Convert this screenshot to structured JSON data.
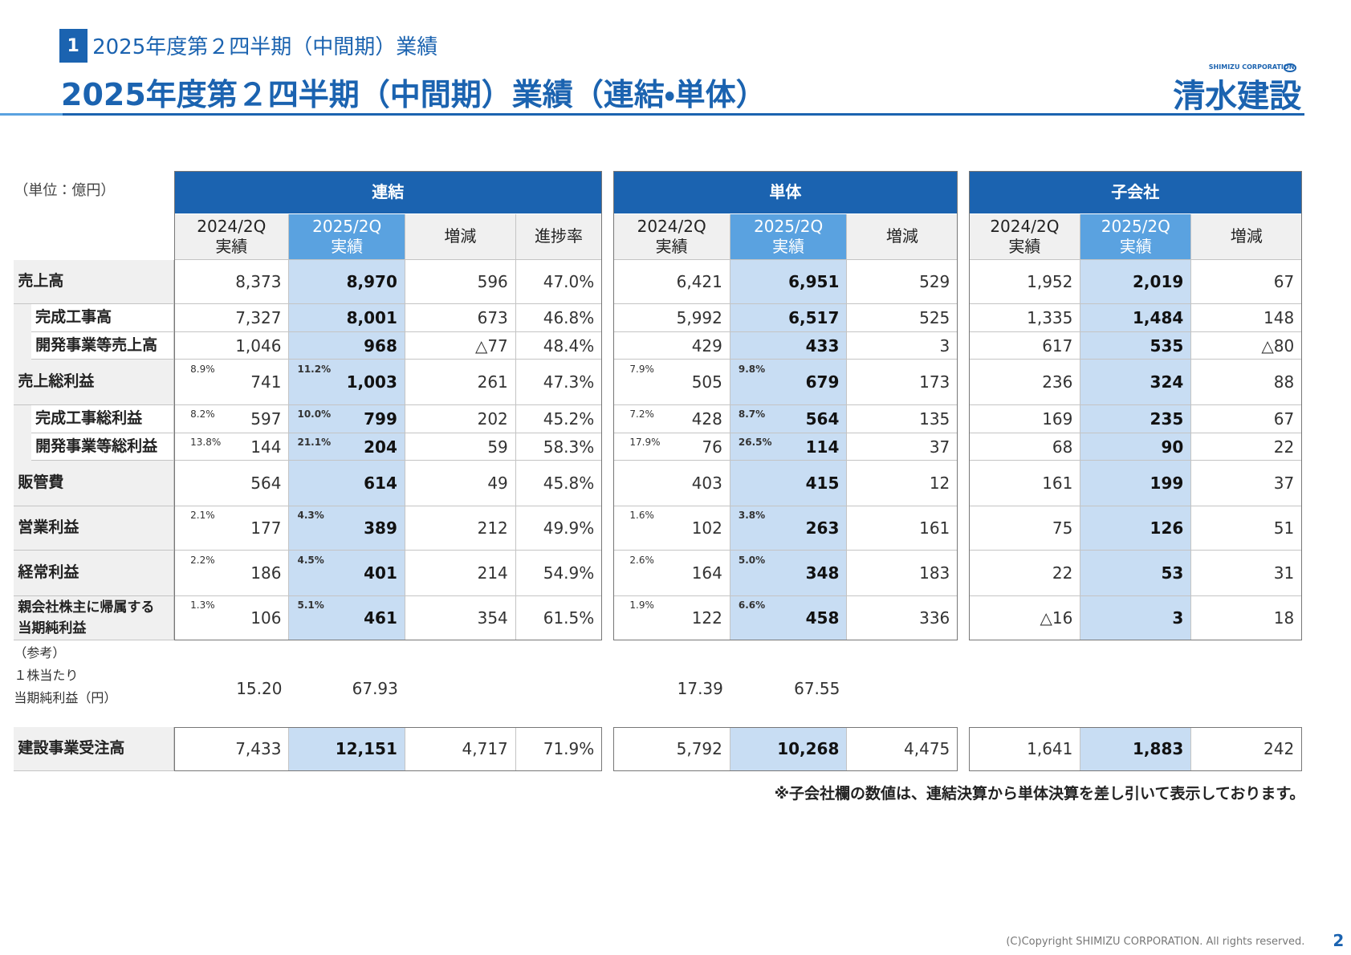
{
  "header": {
    "section_number": "1",
    "section_title": "2025年度第２四半期（中間期）業績",
    "title": "2025年度第２四半期（中間期）業績（連結・単体）",
    "logo_sub": "SHIMIZU CORPORATION",
    "logo": "清水建設"
  },
  "table": {
    "unit": "（単位：億円）",
    "groups": [
      {
        "name": "連結",
        "columns": [
          [
            "2024/2Q",
            "実績"
          ],
          [
            "2025/2Q",
            "実績"
          ],
          [
            "増減"
          ],
          [
            "進捗率"
          ]
        ]
      },
      {
        "name": "単体",
        "columns": [
          [
            "2024/2Q",
            "実績"
          ],
          [
            "2025/2Q",
            "実績"
          ],
          [
            "増減"
          ]
        ]
      },
      {
        "name": "子会社",
        "columns": [
          [
            "2024/2Q",
            "実績"
          ],
          [
            "2025/2Q",
            "実績"
          ],
          [
            "増減"
          ]
        ]
      }
    ],
    "rows": [
      {
        "label": "売上高",
        "indent": false,
        "cells": [
          [
            "8,373",
            "8,970",
            "596",
            "47.0%"
          ],
          [
            "6,421",
            "6,951",
            "529"
          ],
          [
            "1,952",
            "2,019",
            "67"
          ]
        ]
      },
      {
        "label": "完成工事高",
        "indent": true,
        "cells": [
          [
            "7,327",
            "8,001",
            "673",
            "46.8%"
          ],
          [
            "5,992",
            "6,517",
            "525"
          ],
          [
            "1,335",
            "1,484",
            "148"
          ]
        ]
      },
      {
        "label": "開発事業等売上高",
        "indent": true,
        "cells": [
          [
            "1,046",
            "968",
            "△77",
            "48.4%"
          ],
          [
            "429",
            "433",
            "3"
          ],
          [
            "617",
            "535",
            "△80"
          ]
        ]
      },
      {
        "label": "売上総利益",
        "indent": false,
        "cells": [
          [
            "741",
            "1,003",
            "261",
            "47.3%"
          ],
          [
            "505",
            "679",
            "173"
          ],
          [
            "236",
            "324",
            "88"
          ]
        ],
        "ratios": [
          [
            "8.9%",
            "11.2%"
          ],
          [
            "7.9%",
            "9.8%"
          ]
        ]
      },
      {
        "label": "完成工事総利益",
        "indent": true,
        "cells": [
          [
            "597",
            "799",
            "202",
            "45.2%"
          ],
          [
            "428",
            "564",
            "135"
          ],
          [
            "169",
            "235",
            "67"
          ]
        ],
        "ratios": [
          [
            "8.2%",
            "10.0%"
          ],
          [
            "7.2%",
            "8.7%"
          ]
        ]
      },
      {
        "label": "開発事業等総利益",
        "indent": true,
        "cells": [
          [
            "144",
            "204",
            "59",
            "58.3%"
          ],
          [
            "76",
            "114",
            "37"
          ],
          [
            "68",
            "90",
            "22"
          ]
        ],
        "ratios": [
          [
            "13.8%",
            "21.1%"
          ],
          [
            "17.9%",
            "26.5%"
          ]
        ]
      },
      {
        "label": "販管費",
        "indent": false,
        "cells": [
          [
            "564",
            "614",
            "49",
            "45.8%"
          ],
          [
            "403",
            "415",
            "12"
          ],
          [
            "161",
            "199",
            "37"
          ]
        ]
      },
      {
        "label": "営業利益",
        "indent": false,
        "cells": [
          [
            "177",
            "389",
            "212",
            "49.9%"
          ],
          [
            "102",
            "263",
            "161"
          ],
          [
            "75",
            "126",
            "51"
          ]
        ],
        "ratios": [
          [
            "2.1%",
            "4.3%"
          ],
          [
            "1.6%",
            "3.8%"
          ]
        ]
      },
      {
        "label": "経常利益",
        "indent": false,
        "cells": [
          [
            "186",
            "401",
            "214",
            "54.9%"
          ],
          [
            "164",
            "348",
            "183"
          ],
          [
            "22",
            "53",
            "31"
          ]
        ],
        "ratios": [
          [
            "2.2%",
            "4.5%"
          ],
          [
            "2.6%",
            "5.0%"
          ]
        ]
      },
      {
        "label": [
          "親会社株主に帰属する",
          "当期純利益"
        ],
        "indent": false,
        "cells": [
          [
            "106",
            "461",
            "354",
            "61.5%"
          ],
          [
            "122",
            "458",
            "336"
          ],
          [
            "△16",
            "3",
            "18"
          ]
        ],
        "ratios": [
          [
            "1.3%",
            "5.1%"
          ],
          [
            "1.9%",
            "6.6%"
          ]
        ]
      }
    ],
    "reference": {
      "label": [
        "（参考）",
        "１株当たり",
        "当期純利益（円）"
      ],
      "cells": [
        [
          "15.20",
          "67.93"
        ],
        [
          "17.39",
          "67.55"
        ]
      ]
    },
    "orders": {
      "label": "建設事業受注高",
      "cells": [
        [
          "7,433",
          "12,151",
          "4,717",
          "71.9%"
        ],
        [
          "5,792",
          "10,268",
          "4,475"
        ],
        [
          "1,641",
          "1,883",
          "242"
        ]
      ]
    }
  },
  "footnote": "※子会社欄の数値は、連結決算から単体決算を差し引いて表示しております。",
  "footer": {
    "copyright": "(C)Copyright SHIMIZU CORPORATION. All rights reserved.",
    "page": "2"
  }
}
